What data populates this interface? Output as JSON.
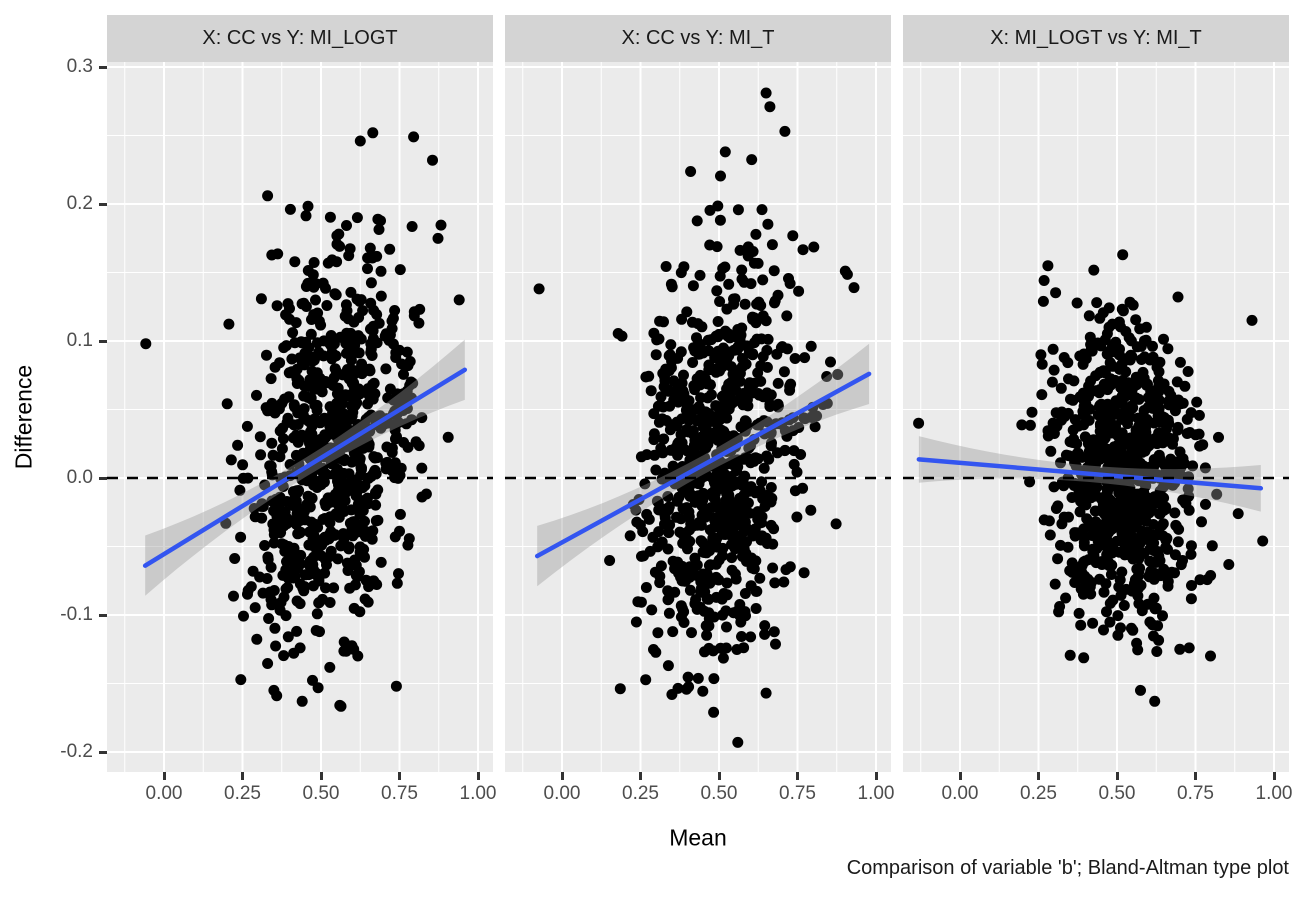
{
  "caption": "Comparison of variable 'b'; Bland-Altman type plot",
  "axes": {
    "x_label": "Mean",
    "y_label": "Difference",
    "x_tick_labels": [
      "0.00",
      "0.25",
      "0.50",
      "0.75",
      "1.00"
    ],
    "x_tick_values": [
      0,
      0.25,
      0.5,
      0.75,
      1.0
    ],
    "y_tick_labels": [
      "0.3",
      "0.2",
      "0.1",
      "0.0",
      "-0.1",
      "-0.2"
    ],
    "y_tick_values": [
      0.3,
      0.2,
      0.1,
      0.0,
      -0.1,
      -0.2
    ]
  },
  "style": {
    "panel_bg": "#EBEBEB",
    "strip_bg": "#D4D4D4",
    "grid_color": "#FFFFFF",
    "point_color": "#000000",
    "smooth_line_color": "#3355F0",
    "ribbon_color": "#999999",
    "ribbon_alpha": 0.4,
    "zero_line_color": "#000000",
    "tick_label_color": "#4D4D4D",
    "tick_mark_color": "#333333"
  },
  "chart_data": {
    "type": "scatter",
    "title": "",
    "xlabel": "Mean",
    "ylabel": "Difference",
    "x_range": [
      -0.18,
      1.05
    ],
    "y_range": [
      -0.215,
      0.304
    ],
    "grid": "on",
    "legend": "none",
    "zero_reference_line": 0.0,
    "x_major_gridlines": [
      0,
      0.25,
      0.5,
      0.75,
      1.0
    ],
    "x_minor_gridlines": [
      -0.125,
      0.125,
      0.375,
      0.625,
      0.875
    ],
    "y_major_gridlines": [
      0.3,
      0.2,
      0.1,
      0.0,
      -0.1,
      -0.2
    ],
    "y_minor_gridlines": [
      0.25,
      0.15,
      0.05,
      -0.05,
      -0.15
    ],
    "facets": [
      {
        "label": "X: CC vs Y: MI_LOGT",
        "n_points": 800,
        "cluster": {
          "cx": 0.53,
          "sx": 0.13,
          "residual_sd": 0.07,
          "x_min": 0.16,
          "x_max": 0.965,
          "y_min": -0.175,
          "y_max": 0.252
        },
        "smooth_line": {
          "x1": -0.06,
          "y1": -0.064,
          "x2": 0.958,
          "y2": 0.079
        },
        "ci_halfwidth_end": 0.022,
        "ci_halfwidth_mid": 0.007,
        "seed": 42,
        "outliers": [
          [
            -0.058,
            0.098
          ],
          [
            0.665,
            0.252
          ],
          [
            0.625,
            0.246
          ],
          [
            0.795,
            0.249
          ],
          [
            0.855,
            0.232
          ],
          [
            0.33,
            0.206
          ],
          [
            0.94,
            0.13
          ],
          [
            0.56,
            -0.166
          ],
          [
            0.44,
            -0.163
          ],
          [
            0.74,
            -0.152
          ],
          [
            0.35,
            -0.155
          ]
        ]
      },
      {
        "label": "X: CC vs Y: MI_T",
        "n_points": 800,
        "cluster": {
          "cx": 0.5,
          "sx": 0.125,
          "residual_sd": 0.071,
          "x_min": 0.15,
          "x_max": 0.97,
          "y_min": -0.185,
          "y_max": 0.255
        },
        "smooth_line": {
          "x1": -0.079,
          "y1": -0.057,
          "x2": 0.978,
          "y2": 0.076
        },
        "ci_halfwidth_end": 0.022,
        "ci_halfwidth_mid": 0.007,
        "seed": 7,
        "outliers": [
          [
            -0.073,
            0.138
          ],
          [
            0.65,
            0.281
          ],
          [
            0.662,
            0.271
          ],
          [
            0.71,
            0.253
          ],
          [
            0.52,
            0.238
          ],
          [
            0.56,
            -0.193
          ],
          [
            0.35,
            -0.158
          ],
          [
            0.93,
            0.139
          ],
          [
            0.65,
            -0.157
          ],
          [
            0.3,
            0.09
          ]
        ]
      },
      {
        "label": "X: MI_LOGT vs Y: MI_T",
        "n_points": 840,
        "cluster": {
          "cx": 0.52,
          "sx": 0.115,
          "residual_sd": 0.057,
          "x_min": 0.17,
          "x_max": 0.96,
          "y_min": -0.148,
          "y_max": 0.152
        },
        "smooth_line": {
          "x1": -0.131,
          "y1": 0.0136,
          "x2": 0.958,
          "y2": -0.0075
        },
        "ci_halfwidth_end": 0.017,
        "ci_halfwidth_mid": 0.006,
        "seed": 99,
        "outliers": [
          [
            -0.132,
            0.04
          ],
          [
            0.28,
            0.155
          ],
          [
            0.518,
            0.163
          ],
          [
            0.62,
            -0.163
          ],
          [
            0.575,
            -0.155
          ],
          [
            0.964,
            -0.046
          ],
          [
            0.93,
            0.115
          ],
          [
            0.7,
            -0.125
          ],
          [
            0.73,
            -0.124
          ]
        ]
      }
    ]
  }
}
